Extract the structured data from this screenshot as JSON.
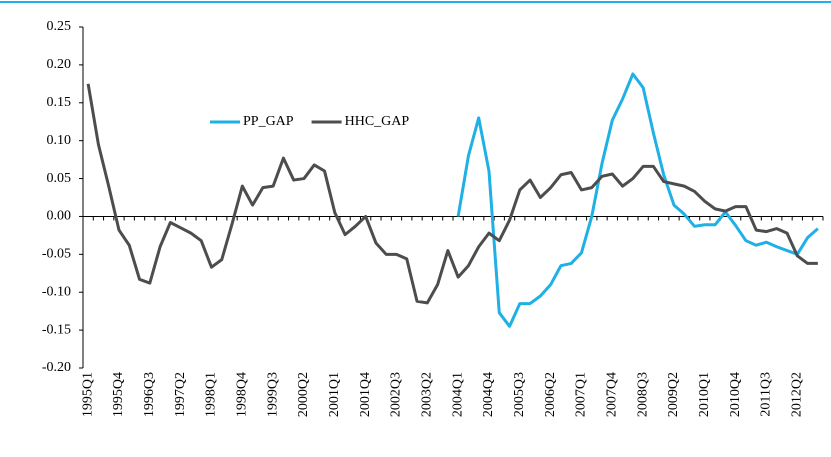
{
  "chart_data": {
    "type": "line",
    "categories": [
      "1995Q1",
      null,
      null,
      "1995Q4",
      null,
      null,
      "1996Q3",
      null,
      null,
      "1997Q2",
      null,
      null,
      "1998Q1",
      null,
      null,
      "1998Q4",
      null,
      null,
      "1999Q3",
      null,
      null,
      "2000Q2",
      null,
      null,
      "2001Q1",
      null,
      null,
      "2001Q4",
      null,
      null,
      "2002Q3",
      null,
      null,
      "2003Q2",
      null,
      null,
      "2004Q1",
      null,
      null,
      "2004Q4",
      null,
      null,
      "2005Q3",
      null,
      null,
      "2006Q2",
      null,
      null,
      "2007Q1",
      null,
      null,
      "2007Q4",
      null,
      null,
      "2008Q3",
      null,
      null,
      "2009Q2",
      null,
      null,
      "2010Q1",
      null,
      null,
      "2010Q4",
      null,
      null,
      "2011Q3",
      null,
      null,
      "2012Q2",
      null,
      null
    ],
    "series": [
      {
        "name": "PP_GAP",
        "color": "#1fb0e6",
        "values": [
          null,
          null,
          null,
          null,
          null,
          null,
          null,
          null,
          null,
          null,
          null,
          null,
          null,
          null,
          null,
          null,
          null,
          null,
          null,
          null,
          null,
          null,
          null,
          null,
          null,
          null,
          null,
          null,
          null,
          null,
          null,
          null,
          null,
          null,
          null,
          null,
          0.0,
          0.08,
          0.13,
          0.06,
          -0.127,
          -0.145,
          -0.115,
          -0.115,
          -0.105,
          -0.09,
          -0.065,
          -0.062,
          -0.048,
          0.0,
          0.07,
          0.127,
          0.155,
          0.188,
          0.17,
          0.11,
          0.055,
          0.015,
          0.003,
          -0.013,
          -0.011,
          -0.011,
          0.006,
          -0.012,
          -0.032,
          -0.038,
          -0.034,
          -0.04,
          -0.045,
          -0.05,
          -0.028,
          -0.016
        ]
      },
      {
        "name": "HHC_GAP",
        "color": "#4d4d4d",
        "values": [
          0.175,
          0.095,
          0.04,
          -0.018,
          -0.038,
          -0.083,
          -0.088,
          -0.04,
          -0.008,
          -0.015,
          -0.022,
          -0.032,
          -0.067,
          -0.057,
          -0.01,
          0.04,
          0.015,
          0.038,
          0.04,
          0.077,
          0.048,
          0.05,
          0.068,
          0.06,
          0.005,
          -0.024,
          -0.013,
          0.0,
          -0.035,
          -0.05,
          -0.05,
          -0.056,
          -0.112,
          -0.114,
          -0.09,
          -0.045,
          -0.08,
          -0.065,
          -0.04,
          -0.022,
          -0.032,
          -0.005,
          0.035,
          0.048,
          0.025,
          0.038,
          0.055,
          0.058,
          0.035,
          0.038,
          0.053,
          0.056,
          0.04,
          0.05,
          0.066,
          0.066,
          0.046,
          0.043,
          0.04,
          0.033,
          0.02,
          0.01,
          0.007,
          0.013,
          0.013,
          -0.018,
          -0.02,
          -0.016,
          -0.022,
          -0.052,
          -0.062,
          -0.062
        ]
      }
    ],
    "ylim": [
      -0.2,
      0.25
    ],
    "yticks": [
      {
        "value": -0.2,
        "label": "-0.20"
      },
      -0.15,
      {
        "value": -0.1,
        "label": "-0.10"
      },
      -0.05,
      {
        "value": 0,
        "label": "0.00"
      },
      0.05,
      {
        "value": 0.1,
        "label": "0.10"
      },
      0.15,
      {
        "value": 0.2,
        "label": "0.20"
      },
      0.25
    ],
    "legend": "top-center"
  }
}
